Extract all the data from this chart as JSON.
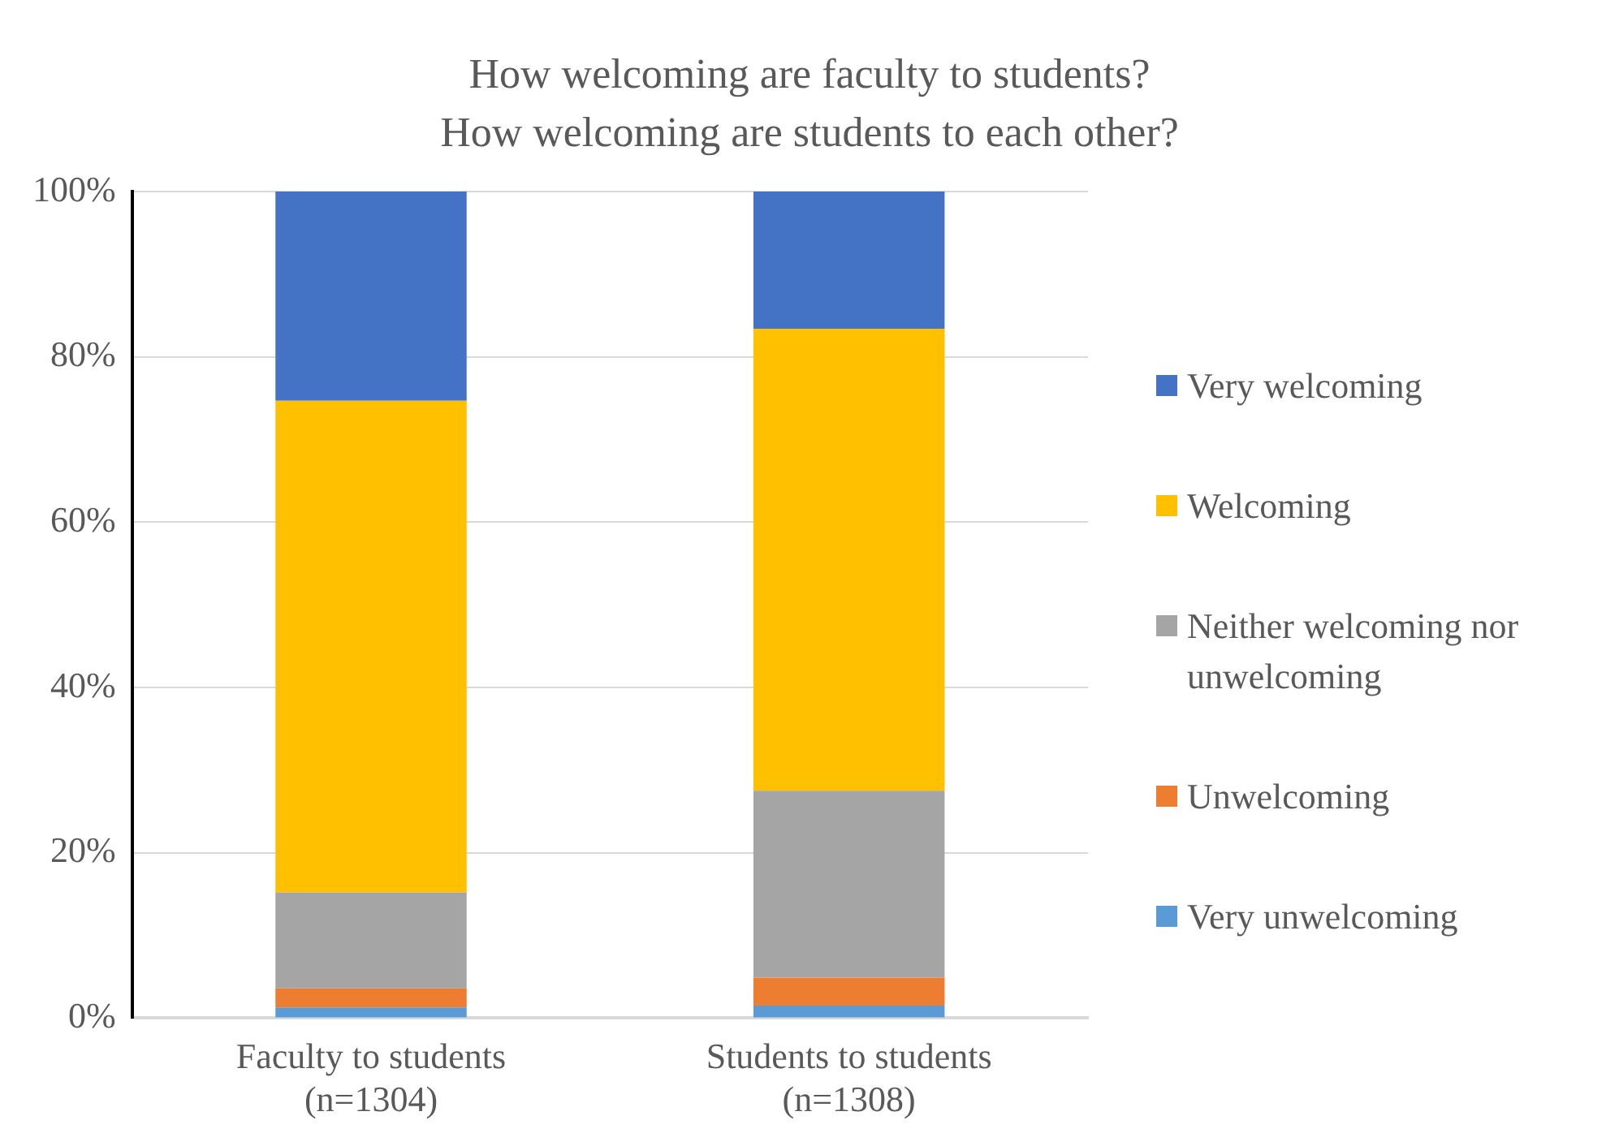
{
  "chart_data": {
    "type": "bar",
    "title": "How welcoming are faculty to students?\nHow welcoming are students to each other?",
    "categories": [
      "Faculty to students\n(n=1304)",
      "Students to students\n(n=1308)"
    ],
    "stacked": true,
    "series": [
      {
        "name": "Very unwelcoming",
        "color": "#5b9bd5",
        "values": [
          1.3,
          1.5
        ]
      },
      {
        "name": "Unwelcoming",
        "color": "#ed7d31",
        "values": [
          2.3,
          3.4
        ]
      },
      {
        "name": "Neither welcoming nor unwelcoming",
        "color": "#a5a5a5",
        "values": [
          11.6,
          22.6
        ]
      },
      {
        "name": "Welcoming",
        "color": "#ffc000",
        "values": [
          59.5,
          55.9
        ]
      },
      {
        "name": "Very welcoming",
        "color": "#4472c4",
        "values": [
          25.3,
          16.6
        ]
      }
    ],
    "ylim": [
      0,
      100
    ],
    "yticks": [
      {
        "value": 0,
        "label": "0%"
      },
      {
        "value": 20,
        "label": "20%"
      },
      {
        "value": 40,
        "label": "40%"
      },
      {
        "value": 60,
        "label": "60%"
      },
      {
        "value": 80,
        "label": "80%"
      },
      {
        "value": 100,
        "label": "100%"
      }
    ],
    "grid": "y",
    "legend": "right"
  }
}
